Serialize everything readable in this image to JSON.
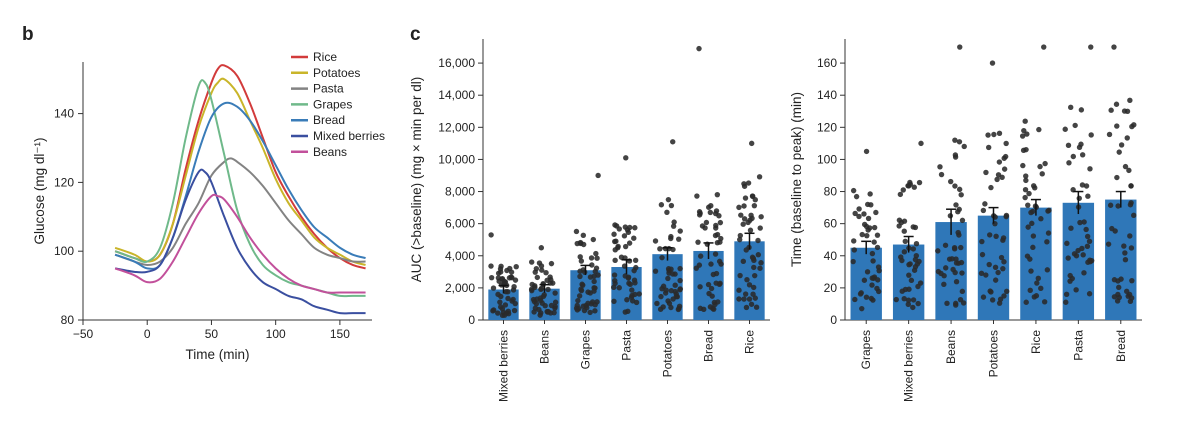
{
  "chart_data": [
    {
      "panel": "b",
      "type": "line",
      "xlabel": "Time (min)",
      "ylabel": "Glucose (mg dl⁻¹)",
      "xlim": [
        -50,
        175
      ],
      "ylim": [
        80,
        155
      ],
      "xticks": [
        -50,
        0,
        50,
        100,
        150
      ],
      "yticks": [
        80,
        100,
        120,
        140
      ],
      "legend_position": "top-right",
      "series": [
        {
          "name": "Rice",
          "color": "#d23b3b",
          "x": [
            -25,
            -10,
            0,
            10,
            20,
            30,
            40,
            50,
            55,
            60,
            70,
            80,
            90,
            100,
            110,
            120,
            130,
            140,
            150,
            160,
            170
          ],
          "y": [
            100,
            98,
            97,
            99,
            108,
            124,
            138,
            149,
            153,
            154,
            151,
            143,
            133,
            123,
            116,
            110,
            105,
            101,
            98,
            96,
            95
          ]
        },
        {
          "name": "Potatoes",
          "color": "#c9b52a",
          "x": [
            -25,
            -10,
            0,
            10,
            20,
            30,
            40,
            50,
            55,
            60,
            70,
            80,
            90,
            100,
            110,
            120,
            130,
            140,
            150,
            160,
            170
          ],
          "y": [
            101,
            99,
            97,
            99,
            108,
            122,
            136,
            146,
            149,
            150,
            146,
            138,
            130,
            121,
            114,
            109,
            104,
            101,
            99,
            97,
            96
          ]
        },
        {
          "name": "Pasta",
          "color": "#838383",
          "x": [
            -25,
            -10,
            0,
            10,
            20,
            30,
            40,
            50,
            60,
            65,
            70,
            80,
            90,
            100,
            110,
            120,
            130,
            140,
            150,
            160,
            170
          ],
          "y": [
            99,
            97,
            96,
            97,
            101,
            108,
            114,
            122,
            126,
            127,
            126,
            123,
            119,
            114,
            109,
            105,
            101,
            99,
            98,
            97,
            97
          ]
        },
        {
          "name": "Grapes",
          "color": "#6fb98a",
          "x": [
            -25,
            -10,
            0,
            10,
            20,
            30,
            40,
            45,
            50,
            60,
            70,
            80,
            90,
            100,
            110,
            120,
            130,
            140,
            150,
            160,
            170
          ],
          "y": [
            100,
            98,
            97,
            101,
            114,
            133,
            148,
            149,
            144,
            128,
            112,
            102,
            96,
            93,
            91,
            90,
            89,
            88,
            87,
            87,
            87
          ]
        },
        {
          "name": "Bread",
          "color": "#3a7cb8",
          "x": [
            -25,
            -10,
            0,
            10,
            20,
            30,
            40,
            50,
            60,
            70,
            80,
            90,
            100,
            110,
            120,
            130,
            140,
            150,
            160,
            170
          ],
          "y": [
            99,
            97,
            95,
            96,
            104,
            116,
            129,
            139,
            143,
            142,
            138,
            132,
            125,
            118,
            112,
            107,
            104,
            101,
            99,
            98
          ]
        },
        {
          "name": "Mixed berries",
          "color": "#3a4fa0",
          "x": [
            -25,
            -10,
            0,
            10,
            20,
            30,
            40,
            45,
            50,
            60,
            70,
            80,
            90,
            100,
            110,
            120,
            130,
            140,
            150,
            160,
            170
          ],
          "y": [
            95,
            94,
            94,
            96,
            104,
            115,
            123,
            123,
            120,
            110,
            101,
            95,
            91,
            89,
            87,
            86,
            84,
            83,
            82,
            82,
            82
          ]
        },
        {
          "name": "Beans",
          "color": "#c2509b",
          "x": [
            -25,
            -10,
            0,
            10,
            20,
            30,
            40,
            50,
            55,
            60,
            70,
            80,
            90,
            100,
            110,
            120,
            130,
            140,
            150,
            160,
            170
          ],
          "y": [
            95,
            93,
            91,
            92,
            97,
            104,
            111,
            116,
            116,
            115,
            110,
            104,
            99,
            95,
            92,
            90,
            89,
            88,
            88,
            88,
            88
          ]
        }
      ]
    },
    {
      "panel": "c",
      "type": "bar",
      "ylabel": "AUC (>baseline) (mg × min per dl)",
      "ylim": [
        0,
        17500
      ],
      "yticks": [
        0,
        2000,
        4000,
        6000,
        8000,
        10000,
        12000,
        14000,
        16000
      ],
      "ytick_labels": [
        "0",
        "2,000",
        "4,000",
        "6,000",
        "8,000",
        "10,000",
        "12,000",
        "14,000",
        "16,000"
      ],
      "categories": [
        "Mixed berries",
        "Beans",
        "Grapes",
        "Pasta",
        "Potatoes",
        "Bread",
        "Rice"
      ],
      "values": [
        1900,
        1950,
        3100,
        3300,
        4100,
        4300,
        4900
      ],
      "errors": [
        250,
        250,
        300,
        450,
        400,
        500,
        500
      ],
      "bar_color": "#2f77b8",
      "point_max": [
        5300,
        4500,
        9000,
        10100,
        11100,
        16900,
        11000
      ],
      "points_per_category": 50
    },
    {
      "panel": "c-right",
      "type": "bar",
      "ylabel": "Time (baseline to peak) (min)",
      "ylim": [
        0,
        175
      ],
      "yticks": [
        0,
        20,
        40,
        60,
        80,
        100,
        120,
        140,
        160
      ],
      "ytick_labels": [
        "0",
        "20",
        "40",
        "60",
        "80",
        "100",
        "120",
        "140",
        "160"
      ],
      "categories": [
        "Grapes",
        "Mixed berries",
        "Beans",
        "Potatoes",
        "Rice",
        "Pasta",
        "Bread"
      ],
      "values": [
        45,
        47,
        61,
        65,
        70,
        73,
        75
      ],
      "errors": [
        4,
        5,
        8,
        5,
        5,
        7,
        5
      ],
      "bar_color": "#2f77b8",
      "point_max": [
        105,
        110,
        170,
        160,
        170,
        170,
        170
      ],
      "points_per_category": 45
    }
  ],
  "labels": {
    "panel_b": "b",
    "panel_c": "c"
  }
}
